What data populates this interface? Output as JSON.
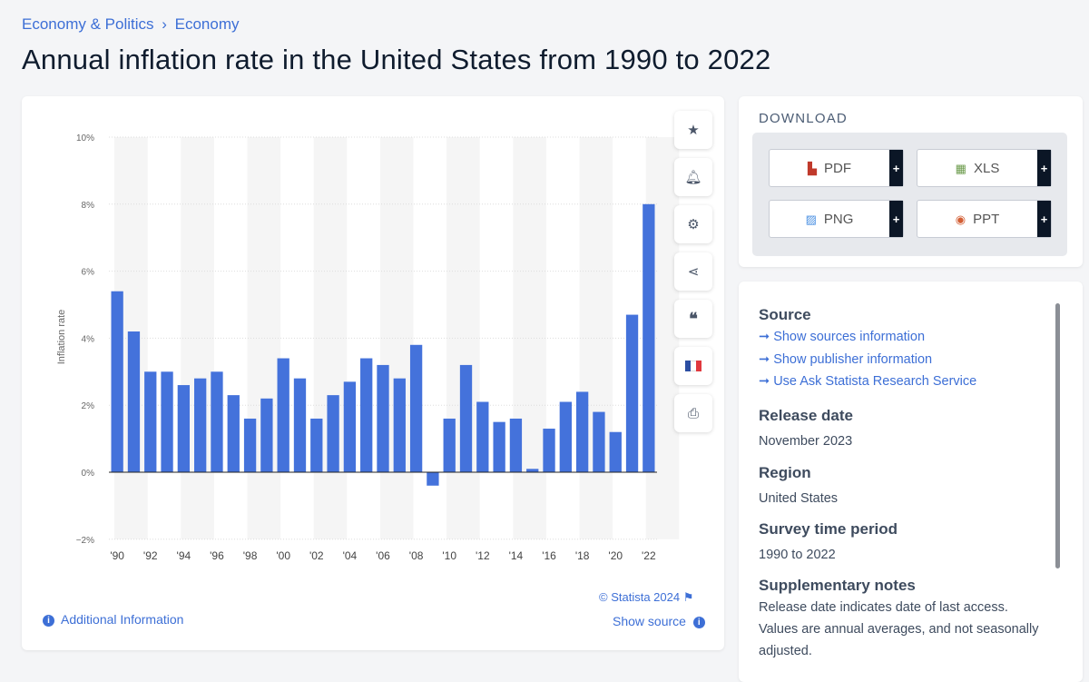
{
  "breadcrumb": [
    "Economy & Politics",
    "›",
    "Economy"
  ],
  "title": "Annual inflation rate in the United States from 1990 to 2022",
  "chart_data": {
    "type": "bar",
    "title": "Annual inflation rate in the United States from 1990 to 2022",
    "ylabel": "Inflation rate",
    "xlabel": "",
    "ylim": [
      -2,
      10
    ],
    "yticks": [
      -2,
      0,
      2,
      4,
      6,
      8,
      10
    ],
    "ytick_labels": [
      "−2%",
      "0%",
      "2%",
      "4%",
      "6%",
      "8%",
      "10%"
    ],
    "categories": [
      1990,
      1991,
      1992,
      1993,
      1994,
      1995,
      1996,
      1997,
      1998,
      1999,
      2000,
      2001,
      2002,
      2003,
      2004,
      2005,
      2006,
      2007,
      2008,
      2009,
      2010,
      2011,
      2012,
      2013,
      2014,
      2015,
      2016,
      2017,
      2018,
      2019,
      2020,
      2021,
      2022
    ],
    "xtick_labels": [
      "'90",
      "'92",
      "'94",
      "'96",
      "'98",
      "'00",
      "'02",
      "'04",
      "'06",
      "'08",
      "'10",
      "'12",
      "'14",
      "'16",
      "'18",
      "'20",
      "'22"
    ],
    "values": [
      5.4,
      4.2,
      3.0,
      3.0,
      2.6,
      2.8,
      3.0,
      2.3,
      1.6,
      2.2,
      3.4,
      2.8,
      1.6,
      2.3,
      2.7,
      3.4,
      3.2,
      2.8,
      3.8,
      -0.4,
      1.6,
      3.2,
      2.1,
      1.5,
      1.6,
      0.1,
      1.3,
      2.1,
      2.4,
      1.8,
      1.2,
      4.7,
      8.0
    ],
    "bar_color": "#4472db",
    "grid": true
  },
  "chart_footer": {
    "copyright": "© Statista 2024",
    "additional": "Additional Information",
    "show_source": "Show source"
  },
  "download": {
    "title": "DOWNLOAD",
    "buttons": [
      {
        "label": "PDF",
        "plus": "+"
      },
      {
        "label": "XLS",
        "plus": "+"
      },
      {
        "label": "PNG",
        "plus": "+"
      },
      {
        "label": "PPT",
        "plus": "+"
      }
    ]
  },
  "source": {
    "heading": "Source",
    "links": [
      "Show sources information",
      "Show publisher information",
      "Use Ask Statista Research Service"
    ],
    "release_label": "Release date",
    "release": "November 2023",
    "region_label": "Region",
    "region": "United States",
    "period_label": "Survey time period",
    "period": "1990 to 2022",
    "notes_label": "Supplementary notes",
    "notes": "Release date indicates date of last access. Values are annual averages, and not seasonally adjusted."
  }
}
